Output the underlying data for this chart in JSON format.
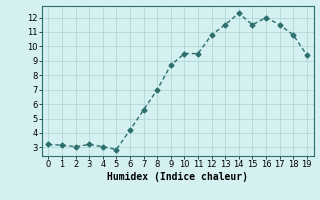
{
  "x": [
    0,
    1,
    2,
    3,
    4,
    5,
    6,
    7,
    8,
    9,
    10,
    11,
    12,
    13,
    14,
    15,
    16,
    17,
    18,
    19
  ],
  "y": [
    3.2,
    3.15,
    3.05,
    3.2,
    3.05,
    2.85,
    4.2,
    5.6,
    7.0,
    8.7,
    9.5,
    9.5,
    10.8,
    11.5,
    12.3,
    11.5,
    12.0,
    11.5,
    10.8,
    9.4
  ],
  "xlabel": "Humidex (Indice chaleur)",
  "xlim": [
    -0.5,
    19.5
  ],
  "ylim": [
    2.4,
    12.8
  ],
  "yticks": [
    3,
    4,
    5,
    6,
    7,
    8,
    9,
    10,
    11,
    12
  ],
  "xticks": [
    0,
    1,
    2,
    3,
    4,
    5,
    6,
    7,
    8,
    9,
    10,
    11,
    12,
    13,
    14,
    15,
    16,
    17,
    18,
    19
  ],
  "line_color": "#2d6e6e",
  "marker": "D",
  "marker_size": 2.5,
  "bg_color": "#d4f0f0",
  "grid_color": "#b0d8d8",
  "xlabel_fontsize": 7,
  "tick_fontsize": 6,
  "line_width": 1.0
}
